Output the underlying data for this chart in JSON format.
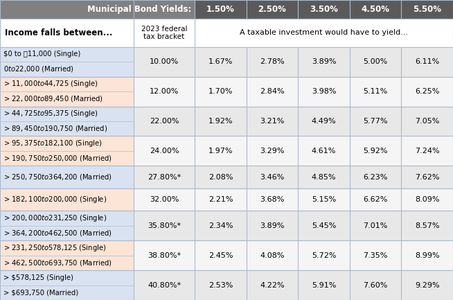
{
  "header_row": {
    "label": "Municipal Bond Yields:",
    "yields": [
      "1.50%",
      "2.50%",
      "3.50%",
      "4.50%",
      "5.50%"
    ]
  },
  "subheader": {
    "col0": "Income falls between...",
    "col1": "2023 federal\ntax bracket",
    "col2_text": "A taxable investment would have to yield..."
  },
  "rows": [
    {
      "income_lines": [
        "$0 to \u001111,000 (Single)",
        "$0 to  $22,000 (Married)"
      ],
      "bracket": "10.00%",
      "values": [
        "1.67%",
        "2.78%",
        "3.89%",
        "5.00%",
        "6.11%"
      ],
      "income_bg": "#d9e2f0",
      "bracket_bg": "#e8e8e8",
      "values_bg": "#e8e8e8",
      "double": true
    },
    {
      "income_lines": [
        "> $11,000 to $44,725 (Single)",
        "> $22,000 to $89,450 (Married)"
      ],
      "bracket": "12.00%",
      "values": [
        "1.70%",
        "2.84%",
        "3.98%",
        "5.11%",
        "6.25%"
      ],
      "income_bg": "#fce4d6",
      "bracket_bg": "#f5f5f5",
      "values_bg": "#f5f5f5",
      "double": true
    },
    {
      "income_lines": [
        "> $44,725 to $95,375 (Single)",
        "> $89,450 to $190,750 (Married)"
      ],
      "bracket": "22.00%",
      "values": [
        "1.92%",
        "3.21%",
        "4.49%",
        "5.77%",
        "7.05%"
      ],
      "income_bg": "#d9e2f0",
      "bracket_bg": "#e8e8e8",
      "values_bg": "#e8e8e8",
      "double": true
    },
    {
      "income_lines": [
        "> $95,375 to $182,100 (Single)",
        "> $190,750 to $250,000 (Married)"
      ],
      "bracket": "24.00%",
      "values": [
        "1.97%",
        "3.29%",
        "4.61%",
        "5.92%",
        "7.24%"
      ],
      "income_bg": "#fce4d6",
      "bracket_bg": "#f5f5f5",
      "values_bg": "#f5f5f5",
      "double": true
    },
    {
      "income_lines": [
        "> $250,750 to $364,200 (Married)"
      ],
      "bracket": "27.80%*",
      "values": [
        "2.08%",
        "3.46%",
        "4.85%",
        "6.23%",
        "7.62%"
      ],
      "income_bg": "#d9e2f0",
      "bracket_bg": "#e8e8e8",
      "values_bg": "#e8e8e8",
      "double": false
    },
    {
      "income_lines": [
        "> $182,100 to $200,000 (Single)"
      ],
      "bracket": "32.00%",
      "values": [
        "2.21%",
        "3.68%",
        "5.15%",
        "6.62%",
        "8.09%"
      ],
      "income_bg": "#fce4d6",
      "bracket_bg": "#f5f5f5",
      "values_bg": "#f5f5f5",
      "double": false
    },
    {
      "income_lines": [
        "> $200,000 to $231,250 (Single)",
        "> $364,200 to $462,500 (Married)"
      ],
      "bracket": "35.80%*",
      "values": [
        "2.34%",
        "3.89%",
        "5.45%",
        "7.01%",
        "8.57%"
      ],
      "income_bg": "#d9e2f0",
      "bracket_bg": "#e8e8e8",
      "values_bg": "#e8e8e8",
      "double": true
    },
    {
      "income_lines": [
        "> $231,250 to $578,125 (Single)",
        "> $462,500 to $693,750 (Married)"
      ],
      "bracket": "38.80%*",
      "values": [
        "2.45%",
        "4.08%",
        "5.72%",
        "7.35%",
        "8.99%"
      ],
      "income_bg": "#fce4d6",
      "bracket_bg": "#f5f5f5",
      "values_bg": "#f5f5f5",
      "double": true
    },
    {
      "income_lines": [
        "> $578,125 (Single)",
        "> $693,750 (Married)"
      ],
      "bracket": "40.80%*",
      "values": [
        "2.53%",
        "4.22%",
        "5.91%",
        "7.60%",
        "9.29%"
      ],
      "income_bg": "#d9e2f0",
      "bracket_bg": "#e8e8e8",
      "values_bg": "#e8e8e8",
      "double": true
    }
  ],
  "header_bg": "#808080",
  "header_yield_bg": "#696969",
  "border_color": "#adb9ca",
  "figsize": [
    6.54,
    4.33
  ],
  "dpi": 100
}
